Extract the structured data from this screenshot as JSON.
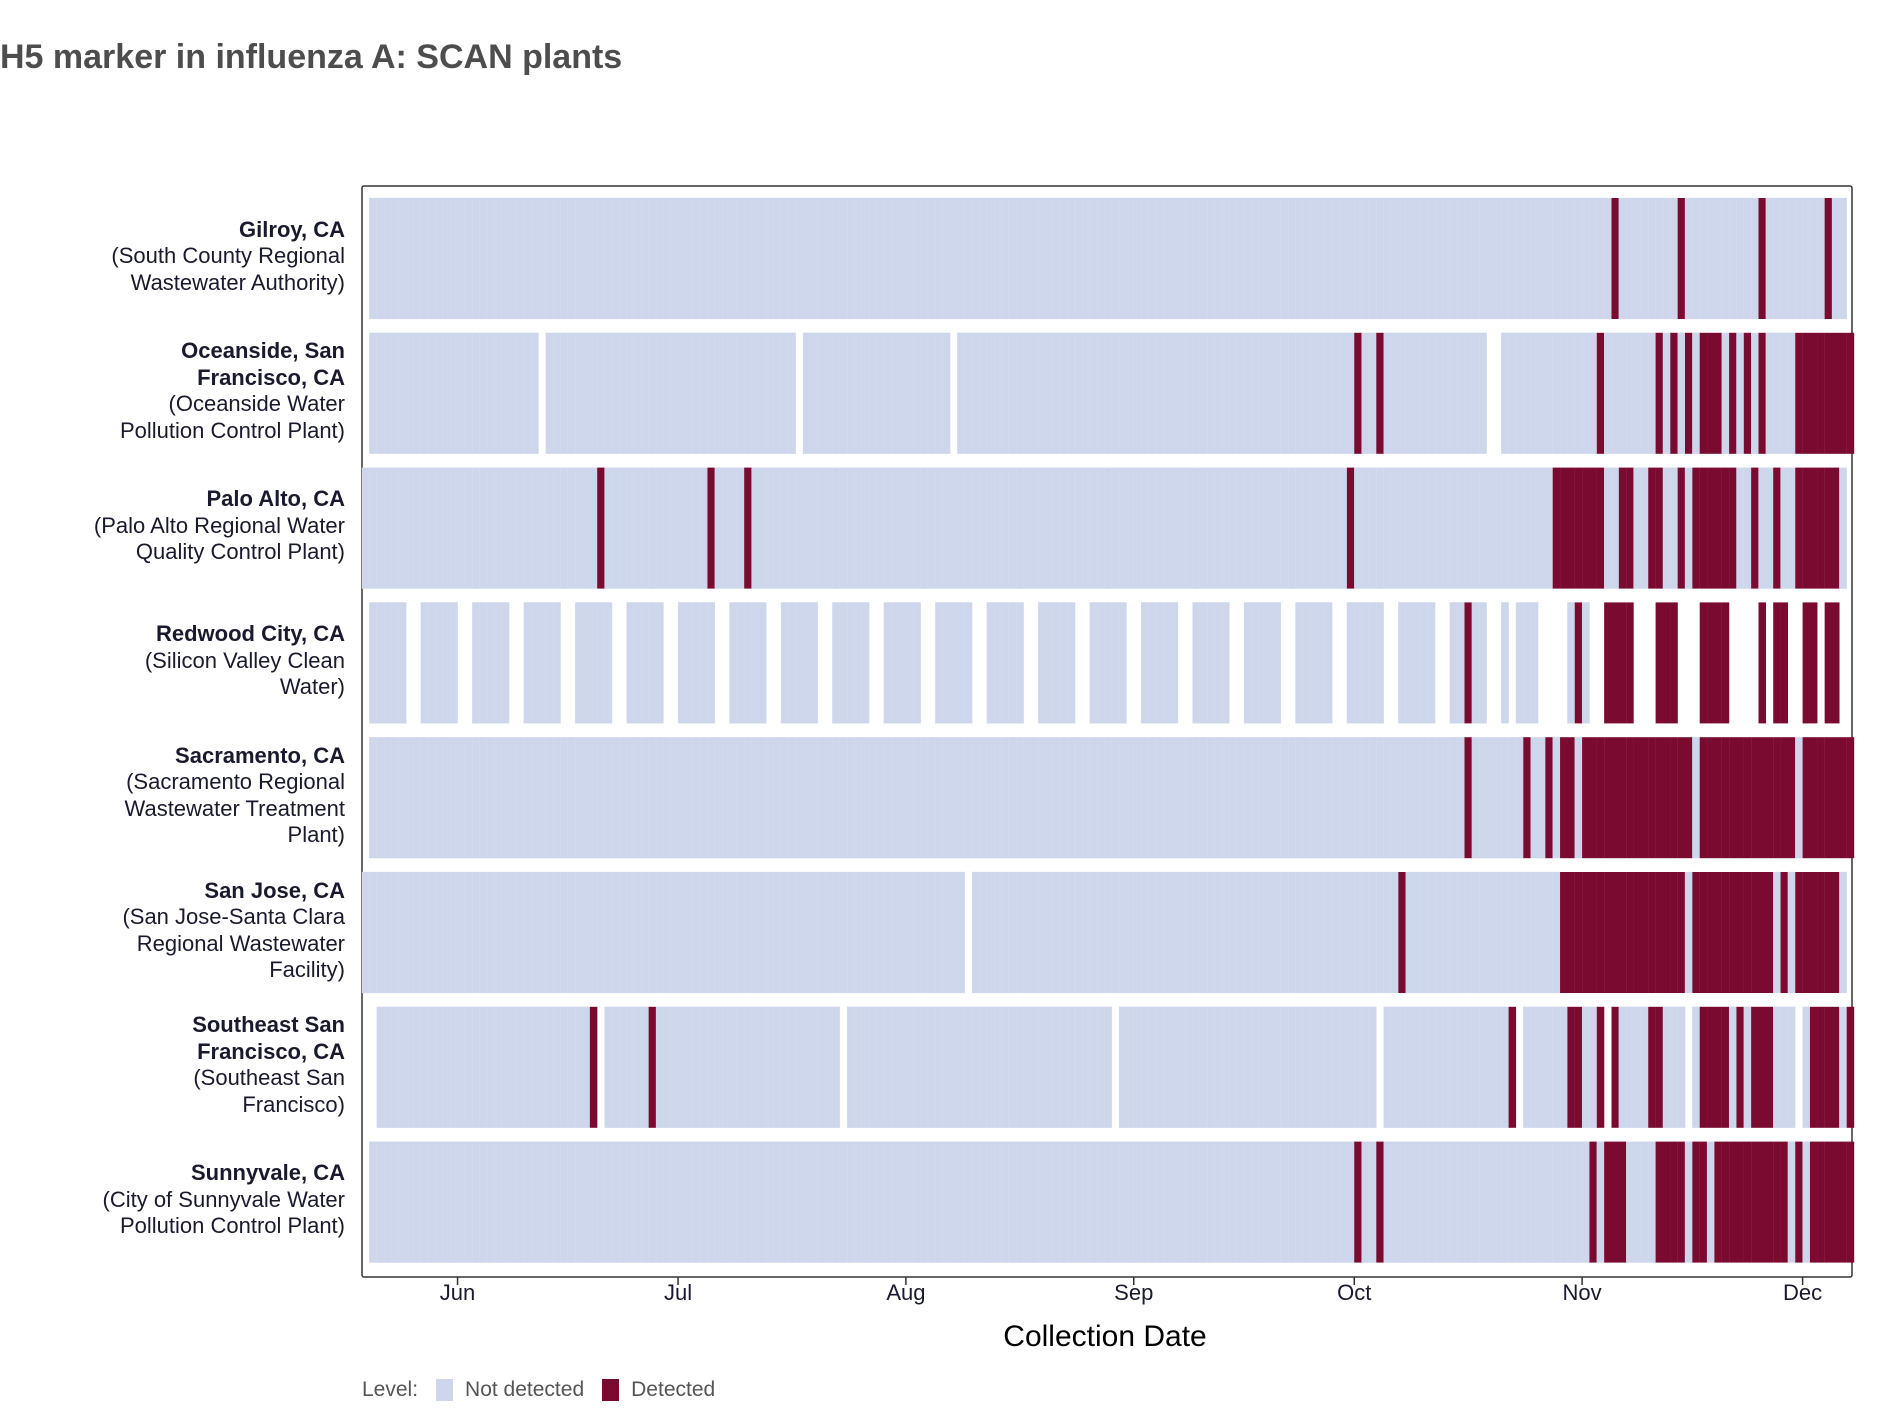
{
  "chart_data": {
    "type": "heatmap",
    "title": "H5 marker in influenza A: SCAN plants",
    "xlabel": "Collection Date",
    "ylabel": "",
    "x_range": [
      "2024-05-19",
      "2024-12-08"
    ],
    "x_ticks": [
      "Jun",
      "Jul",
      "Aug",
      "Sep",
      "Oct",
      "Nov",
      "Dec"
    ],
    "legend": {
      "title": "Level:",
      "items": [
        {
          "label": "Not detected",
          "color": "#cdd6eb"
        },
        {
          "label": "Detected",
          "color": "#7a0a30"
        }
      ],
      "position": "bottom"
    },
    "series": [
      {
        "name_bold": "Gilroy, CA",
        "name_lines": [
          "(South County Regional",
          "Wastewater Authority)"
        ],
        "start": "2024-05-20",
        "end": "2024-12-06",
        "missing": [],
        "detected": [
          "2024-11-05",
          "2024-11-14",
          "2024-11-25",
          "2024-12-04"
        ]
      },
      {
        "name_bold": "Oceanside, San Francisco, CA",
        "name_bold_lines": [
          "Oceanside, San",
          "Francisco, CA"
        ],
        "name_lines": [
          "(Oceanside Water",
          "Pollution Control Plant)"
        ],
        "start": "2024-05-20",
        "end": "2024-12-07",
        "missing": [
          "2024-06-12",
          "2024-07-17",
          "2024-08-07",
          "2024-10-19",
          "2024-10-20"
        ],
        "detected": [
          "2024-10-01",
          "2024-10-04",
          "2024-11-03",
          "2024-11-11",
          "2024-11-13",
          "2024-11-15",
          "2024-11-17",
          "2024-11-18",
          "2024-11-19",
          "2024-11-21",
          "2024-11-23",
          "2024-11-25",
          "2024-11-30",
          "2024-12-01",
          "2024-12-02",
          "2024-12-03",
          "2024-12-04",
          "2024-12-05",
          "2024-12-06",
          "2024-12-07"
        ]
      },
      {
        "name_bold": "Palo Alto, CA",
        "name_lines": [
          "(Palo Alto Regional Water",
          "Quality Control Plant)"
        ],
        "start": "2024-05-19",
        "end": "2024-12-06",
        "missing": [],
        "detected": [
          "2024-06-20",
          "2024-07-05",
          "2024-07-10",
          "2024-09-30",
          "2024-10-28",
          "2024-10-29",
          "2024-10-30",
          "2024-10-31",
          "2024-11-01",
          "2024-11-02",
          "2024-11-03",
          "2024-11-06",
          "2024-11-07",
          "2024-11-10",
          "2024-11-11",
          "2024-11-14",
          "2024-11-16",
          "2024-11-17",
          "2024-11-18",
          "2024-11-19",
          "2024-11-20",
          "2024-11-21",
          "2024-11-24",
          "2024-11-27",
          "2024-11-30",
          "2024-12-01",
          "2024-12-02",
          "2024-12-03",
          "2024-12-04",
          "2024-12-05"
        ]
      },
      {
        "name_bold": "Redwood City, CA",
        "name_lines": [
          "(Silicon Valley Clean",
          "Water)"
        ],
        "start": "2024-05-20",
        "end": "2024-12-05",
        "missing": [
          "pattern: 2 of every 7 days missing through Oct; many gaps Nov-Dec"
        ],
        "detected": [
          "2024-10-16",
          "2024-10-31",
          "2024-11-04",
          "2024-11-05",
          "2024-11-06",
          "2024-11-07",
          "2024-11-11",
          "2024-11-12",
          "2024-11-13",
          "2024-11-17",
          "2024-11-18",
          "2024-11-19",
          "2024-11-20",
          "2024-11-25",
          "2024-11-27",
          "2024-11-28",
          "2024-12-01",
          "2024-12-02",
          "2024-12-04",
          "2024-12-05"
        ]
      },
      {
        "name_bold": "Sacramento, CA",
        "name_lines": [
          "(Sacramento Regional",
          "Wastewater Treatment",
          "Plant)"
        ],
        "start": "2024-05-20",
        "end": "2024-12-07",
        "missing": [],
        "detected": [
          "2024-10-16",
          "2024-10-24",
          "2024-10-27",
          "2024-10-29",
          "2024-10-30",
          "2024-11-01",
          "2024-11-02",
          "2024-11-03",
          "2024-11-04",
          "2024-11-05",
          "2024-11-06",
          "2024-11-07",
          "2024-11-08",
          "2024-11-09",
          "2024-11-10",
          "2024-11-11",
          "2024-11-12",
          "2024-11-13",
          "2024-11-14",
          "2024-11-15",
          "2024-11-17",
          "2024-11-18",
          "2024-11-19",
          "2024-11-20",
          "2024-11-21",
          "2024-11-22",
          "2024-11-23",
          "2024-11-24",
          "2024-11-25",
          "2024-11-26",
          "2024-11-27",
          "2024-11-28",
          "2024-11-29",
          "2024-12-01",
          "2024-12-02",
          "2024-12-03",
          "2024-12-04",
          "2024-12-05",
          "2024-12-06",
          "2024-12-07"
        ]
      },
      {
        "name_bold": "San Jose, CA",
        "name_lines": [
          "(San Jose-Santa Clara",
          "Regional Wastewater",
          "Facility)"
        ],
        "start": "2024-05-19",
        "end": "2024-12-06",
        "missing": [
          "2024-08-09"
        ],
        "detected": [
          "2024-10-07",
          "2024-10-29",
          "2024-10-30",
          "2024-10-31",
          "2024-11-01",
          "2024-11-02",
          "2024-11-03",
          "2024-11-04",
          "2024-11-05",
          "2024-11-06",
          "2024-11-07",
          "2024-11-08",
          "2024-11-09",
          "2024-11-10",
          "2024-11-11",
          "2024-11-12",
          "2024-11-13",
          "2024-11-14",
          "2024-11-16",
          "2024-11-17",
          "2024-11-18",
          "2024-11-19",
          "2024-11-20",
          "2024-11-21",
          "2024-11-22",
          "2024-11-23",
          "2024-11-24",
          "2024-11-25",
          "2024-11-26",
          "2024-11-28",
          "2024-11-30",
          "2024-12-01",
          "2024-12-02",
          "2024-12-03",
          "2024-12-04",
          "2024-12-05"
        ]
      },
      {
        "name_bold": "Southeast San Francisco, CA",
        "name_bold_lines": [
          "Southeast San",
          "Francisco, CA"
        ],
        "name_lines": [
          "(Southeast San",
          "Francisco)"
        ],
        "start": "2024-05-21",
        "end": "2024-12-07",
        "missing": [
          "2024-06-20",
          "2024-07-23",
          "2024-08-29",
          "2024-10-04",
          "2024-10-23",
          "2024-11-04",
          "2024-11-15",
          "2024-11-30"
        ],
        "detected": [
          "2024-06-19",
          "2024-06-27",
          "2024-10-22",
          "2024-10-30",
          "2024-10-31",
          "2024-11-03",
          "2024-11-05",
          "2024-11-10",
          "2024-11-11",
          "2024-11-17",
          "2024-11-18",
          "2024-11-19",
          "2024-11-20",
          "2024-11-22",
          "2024-11-24",
          "2024-11-25",
          "2024-11-26",
          "2024-12-02",
          "2024-12-03",
          "2024-12-04",
          "2024-12-05",
          "2024-12-07"
        ]
      },
      {
        "name_bold": "Sunnyvale, CA",
        "name_lines": [
          "(City of Sunnyvale Water",
          "Pollution Control Plant)"
        ],
        "start": "2024-05-20",
        "end": "2024-12-07",
        "missing": [],
        "detected": [
          "2024-10-01",
          "2024-10-04",
          "2024-11-02",
          "2024-11-04",
          "2024-11-05",
          "2024-11-06",
          "2024-11-11",
          "2024-11-12",
          "2024-11-13",
          "2024-11-14",
          "2024-11-16",
          "2024-11-17",
          "2024-11-19",
          "2024-11-20",
          "2024-11-21",
          "2024-11-22",
          "2024-11-23",
          "2024-11-24",
          "2024-11-25",
          "2024-11-26",
          "2024-11-27",
          "2024-11-28",
          "2024-11-30",
          "2024-12-02",
          "2024-12-03",
          "2024-12-04",
          "2024-12-05",
          "2024-12-06",
          "2024-12-07"
        ]
      }
    ]
  }
}
